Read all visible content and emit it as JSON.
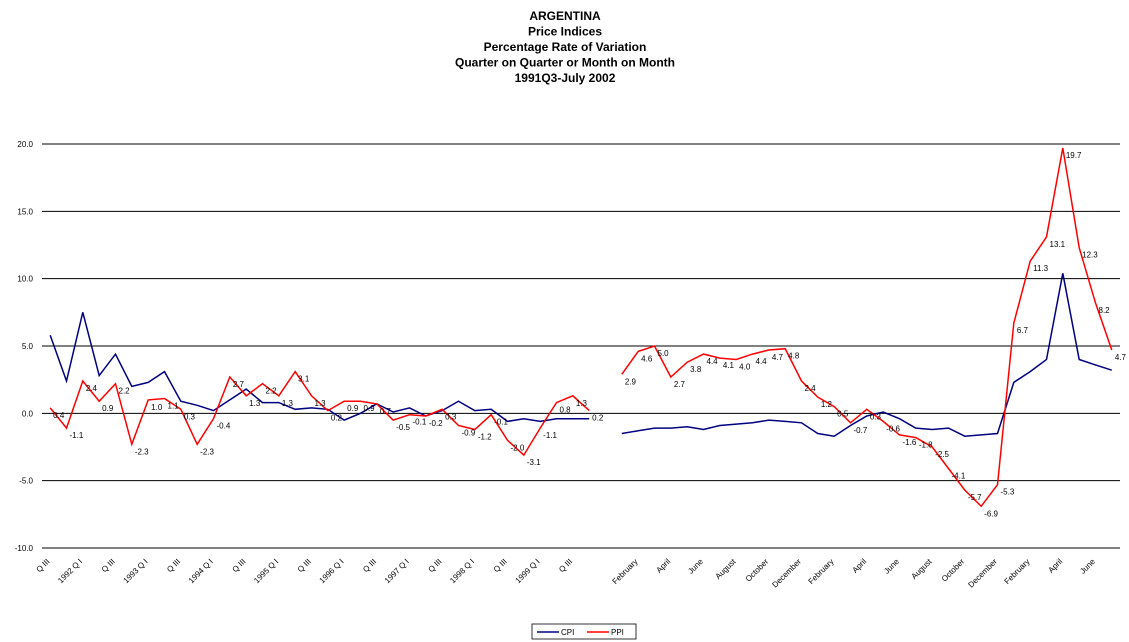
{
  "chart_data": {
    "type": "line",
    "title": [
      "ARGENTINA",
      "Price Indices",
      "Percentage Rate of Variation",
      "Quarter on Quarter or Month on Month",
      "1991Q3-July 2002"
    ],
    "categories": [
      "Q III",
      null,
      "1992 Q I",
      null,
      "Q III",
      null,
      "1993 Q I",
      null,
      "Q III",
      null,
      "1994 Q I",
      null,
      "Q III",
      null,
      "1995 Q I",
      null,
      "Q III",
      null,
      "1996 Q I",
      null,
      "Q III",
      null,
      "1997 Q I",
      null,
      "Q III",
      null,
      "1998 Q I",
      null,
      "Q III",
      null,
      "1999 Q I",
      null,
      "Q III",
      null,
      null,
      null,
      "February",
      null,
      "April",
      null,
      "June",
      null,
      "August",
      null,
      "October",
      null,
      "December",
      null,
      "February",
      null,
      "April",
      null,
      "June",
      null,
      "August",
      null,
      "October",
      null,
      "December",
      null,
      "February",
      null,
      "April",
      null,
      "June",
      null
    ],
    "series": [
      {
        "name": "CPI",
        "color": "#000080",
        "values": [
          5.8,
          2.4,
          7.5,
          2.8,
          4.4,
          2.0,
          2.3,
          3.1,
          0.9,
          0.6,
          0.2,
          1.0,
          1.8,
          0.8,
          0.8,
          0.3,
          0.4,
          0.3,
          -0.5,
          0.0,
          0.7,
          0.1,
          0.4,
          -0.2,
          0.2,
          0.9,
          0.2,
          0.3,
          -0.6,
          -0.4,
          -0.6,
          -0.4,
          -0.4,
          -0.4,
          null,
          -1.5,
          -1.3,
          -1.1,
          -1.1,
          -1.0,
          -1.2,
          -0.9,
          -0.8,
          -0.7,
          -0.5,
          -0.6,
          -0.7,
          -1.5,
          -1.7,
          -0.9,
          -0.2,
          0.1,
          -0.4,
          -1.1,
          -1.2,
          -1.1,
          -1.7,
          -1.6,
          -1.5,
          2.3,
          3.1,
          4.0,
          10.4,
          4.0,
          3.6,
          3.2
        ]
      },
      {
        "name": "PPI",
        "color": "#ff0000",
        "values": [
          0.4,
          -1.1,
          2.4,
          0.9,
          2.2,
          -2.3,
          1.0,
          1.1,
          0.3,
          -2.3,
          -0.4,
          2.7,
          1.3,
          2.2,
          1.3,
          3.1,
          1.3,
          0.2,
          0.9,
          0.9,
          0.7,
          -0.5,
          -0.1,
          -0.2,
          0.3,
          -0.9,
          -1.2,
          -0.1,
          -2.0,
          -3.1,
          -1.1,
          0.8,
          1.3,
          0.2,
          null,
          2.9,
          4.6,
          5.0,
          2.7,
          3.8,
          4.4,
          4.1,
          4.0,
          4.4,
          4.7,
          4.8,
          2.4,
          1.2,
          0.5,
          -0.7,
          0.3,
          -0.6,
          -1.6,
          -1.8,
          -2.5,
          -4.1,
          -5.7,
          -6.9,
          -5.3,
          6.7,
          11.3,
          13.1,
          19.7,
          12.3,
          8.2,
          4.7
        ],
        "value_labels": [
          "0.4",
          "-1.1",
          "2.4",
          "0.9",
          "2.2",
          "-2.3",
          "1.0",
          "1.1",
          "0.3",
          "-2.3",
          "-0.4",
          "2.7",
          "1.3",
          "2.2",
          "1.3",
          "3.1",
          "1.3",
          "0.2",
          "0.9",
          "0.9",
          "0.7",
          "-0.5",
          "-0.1",
          "-0.2",
          "0.3",
          "-0.9",
          "-1.2",
          "-0.1",
          "-2.0",
          "-3.1",
          "-1.1",
          "0.8",
          "1.3",
          "0.2",
          null,
          "2.9",
          "4.6",
          "5.0",
          "2.7",
          "3.8",
          "4.4",
          "4.1",
          "4.0",
          "4.4",
          "4.7",
          "4.8",
          "2.4",
          "1.2",
          "0.5",
          "-0.7",
          "0.3",
          "-0.6",
          "-1.6",
          "-1.8",
          "-2.5",
          "-4.1",
          "-5.7",
          "-6.9",
          "-5.3",
          "6.7",
          "11.3",
          "13.1",
          "19.7",
          "12.3",
          "8.2",
          "4.7"
        ]
      }
    ],
    "ylim": [
      -10,
      20
    ],
    "yticks": [
      {
        "value": -10,
        "label": "-10.0"
      },
      {
        "value": -5,
        "label": "-5.0"
      },
      {
        "value": 0,
        "label": "0.0"
      },
      {
        "value": 5,
        "label": "5.0"
      },
      {
        "value": 10,
        "label": "10.0"
      },
      {
        "value": 15,
        "label": "15.0"
      },
      {
        "value": 20,
        "label": "20.0"
      }
    ],
    "grid": true,
    "legend": "bottom"
  }
}
